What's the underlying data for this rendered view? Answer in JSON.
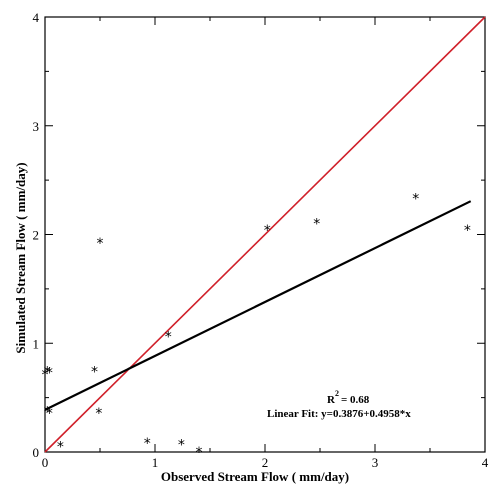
{
  "chart_data": {
    "type": "scatter",
    "title": "",
    "xlabel": "Observed Stream Flow ( mm/day)",
    "ylabel": "Simulated Stream Flow ( mm/day)",
    "xlim": [
      0,
      4
    ],
    "ylim": [
      0,
      4
    ],
    "x_ticks": [
      "0",
      "1",
      "2",
      "3",
      "4"
    ],
    "y_ticks": [
      "0",
      "1",
      "2",
      "3",
      "4"
    ],
    "grid": false,
    "marker": "*",
    "points": [
      {
        "x": 0.0,
        "y": 0.72
      },
      {
        "x": 0.02,
        "y": 0.75
      },
      {
        "x": 0.04,
        "y": 0.74
      },
      {
        "x": 0.02,
        "y": 0.38
      },
      {
        "x": 0.04,
        "y": 0.37
      },
      {
        "x": 0.14,
        "y": 0.06
      },
      {
        "x": 0.45,
        "y": 0.75
      },
      {
        "x": 0.49,
        "y": 0.37
      },
      {
        "x": 0.5,
        "y": 1.93
      },
      {
        "x": 0.93,
        "y": 0.09
      },
      {
        "x": 1.12,
        "y": 1.07
      },
      {
        "x": 1.24,
        "y": 0.08
      },
      {
        "x": 1.4,
        "y": 0.01
      },
      {
        "x": 2.02,
        "y": 2.05
      },
      {
        "x": 2.47,
        "y": 2.11
      },
      {
        "x": 3.37,
        "y": 2.34
      },
      {
        "x": 3.84,
        "y": 2.05
      }
    ],
    "lines": [
      {
        "name": "1:1 line",
        "color": "#d0202a",
        "x": [
          0,
          4
        ],
        "y": [
          0,
          4
        ]
      },
      {
        "name": "Linear Fit",
        "color": "#000000",
        "x": [
          0,
          3.87
        ],
        "y": [
          0.3876,
          2.3063
        ]
      }
    ],
    "annotations": {
      "r2_label": "R",
      "r2_superscript": "2",
      "r2_value": "= 0.68",
      "fit_text": "Linear Fit: y=0.3876+0.4958*x"
    }
  },
  "colors": {
    "axes": "#000000",
    "identity_line": "#d0202a",
    "fit_line": "#000000",
    "background": "#ffffff"
  }
}
